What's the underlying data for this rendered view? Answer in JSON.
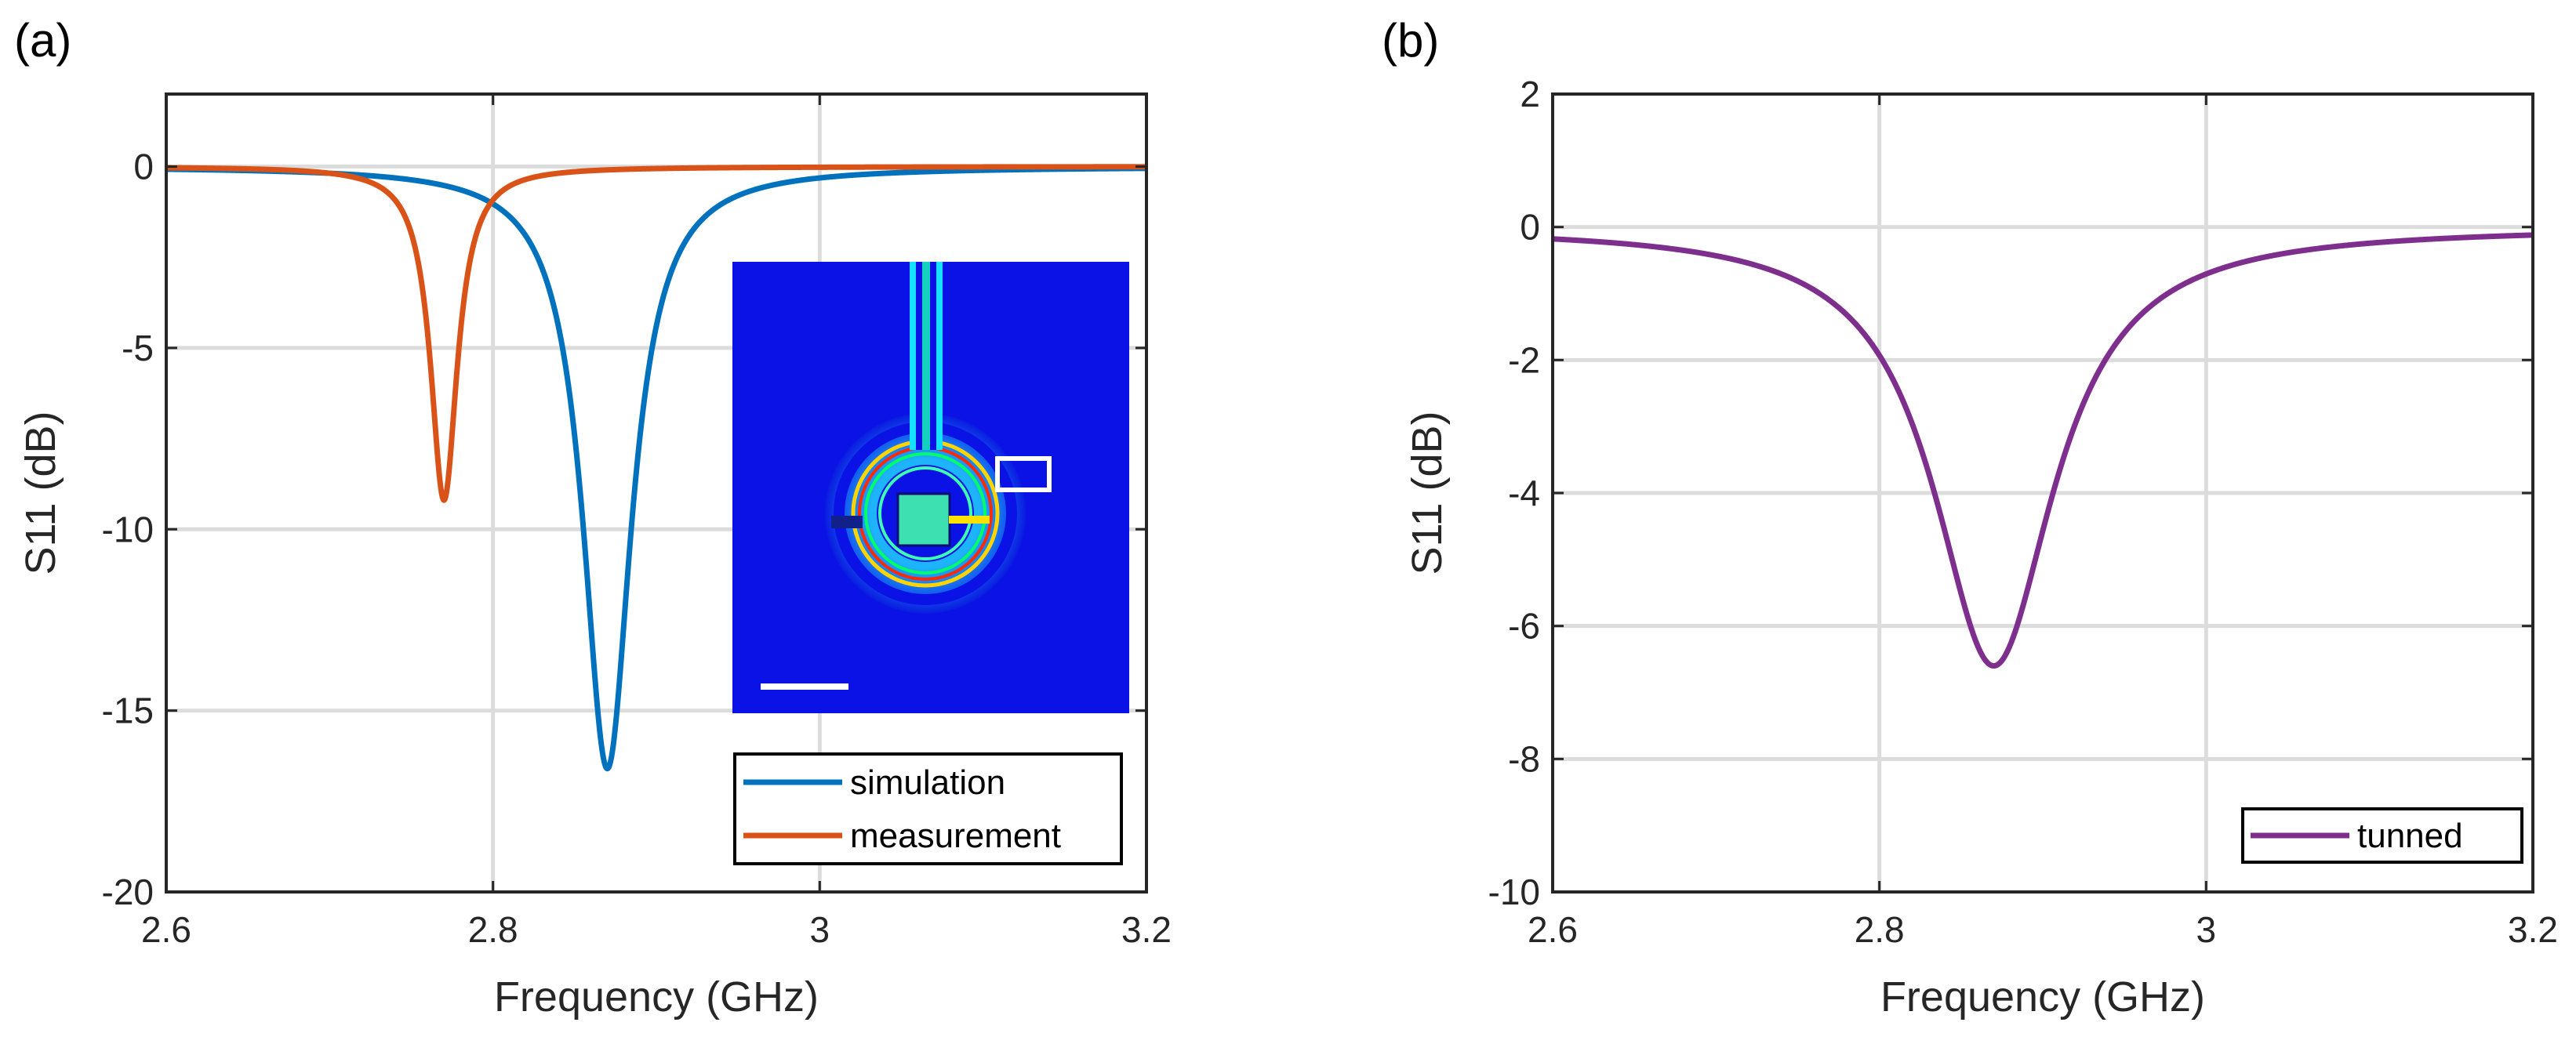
{
  "chart_data": [
    {
      "panel_label": "(a)",
      "type": "line",
      "xlabel": "Frequency (GHz)",
      "ylabel": "S11 (dB)",
      "xlim": [
        2.6,
        3.2
      ],
      "ylim": [
        -20,
        2
      ],
      "xticks": [
        2.6,
        2.8,
        3.0,
        3.2
      ],
      "xtick_labels": [
        "2.6",
        "2.8",
        "3",
        "3.2"
      ],
      "yticks": [
        0,
        -5,
        -10,
        -15,
        -20
      ],
      "ytick_labels": [
        "0",
        "-5",
        "-10",
        "-15",
        "-20"
      ],
      "grid": true,
      "legend_position": "bottom-right",
      "series": [
        {
          "name": "simulation",
          "color": "#0072BD",
          "f0": 2.87,
          "min_db": -16.6,
          "half_width": 0.018
        },
        {
          "name": "measurement",
          "color": "#D95319",
          "f0": 2.77,
          "min_db": -9.2,
          "half_width": 0.01
        }
      ],
      "inset": {
        "description_icon": "field-distribution-inset"
      }
    },
    {
      "panel_label": "(b)",
      "type": "line",
      "xlabel": "Frequency (GHz)",
      "ylabel": "S11 (dB)",
      "xlim": [
        2.6,
        3.2
      ],
      "ylim": [
        -10,
        2
      ],
      "xticks": [
        2.6,
        2.8,
        3.0,
        3.2
      ],
      "xtick_labels": [
        "2.6",
        "2.8",
        "3",
        "3.2"
      ],
      "yticks": [
        2,
        0,
        -2,
        -4,
        -6,
        -8,
        -10
      ],
      "ytick_labels": [
        "2",
        "0",
        "-2",
        "-4",
        "-6",
        "-8",
        "-10"
      ],
      "grid": true,
      "legend_position": "bottom-right",
      "series": [
        {
          "name": "tunned",
          "color": "#7E2F8E",
          "f0": 2.87,
          "min_db": -6.6,
          "half_width": 0.045
        }
      ]
    }
  ]
}
